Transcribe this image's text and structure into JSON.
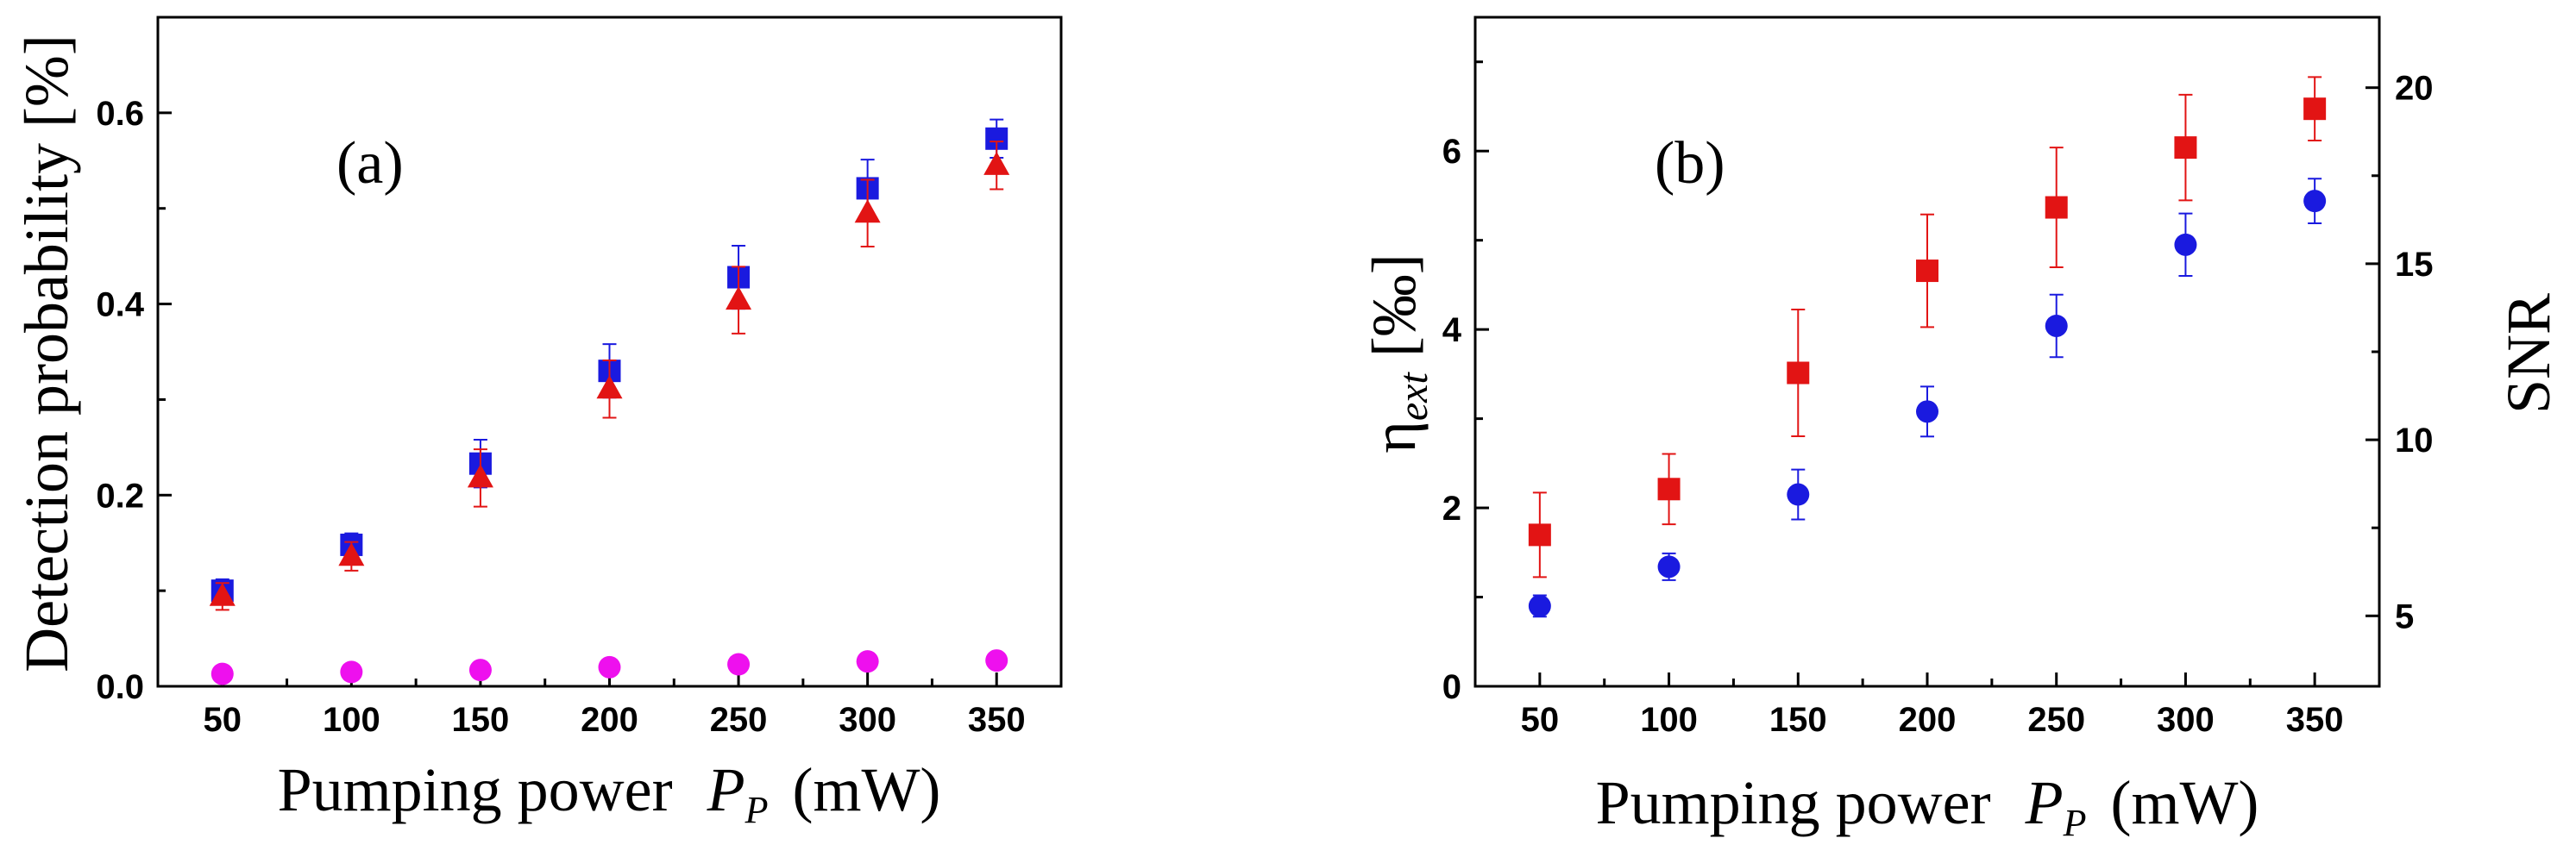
{
  "chart_data": [
    {
      "panel_label": "(a)",
      "type": "scatter",
      "xlabel": {
        "main": "Pumping power",
        "symbol": "P",
        "sub": "P",
        "unit": "(mW)"
      },
      "ylabel": "Detection probability [%]",
      "xlim": [
        25,
        375
      ],
      "ylim": [
        0,
        0.7
      ],
      "x": [
        50,
        100,
        150,
        200,
        250,
        300,
        350
      ],
      "xticks": [
        50,
        100,
        150,
        200,
        250,
        300,
        350
      ],
      "xtick_labels": [
        "50",
        "100",
        "150",
        "200",
        "250",
        "300",
        "350"
      ],
      "yticks": [
        0.0,
        0.2,
        0.4,
        0.6
      ],
      "ytick_labels": [
        "0.0",
        "0.2",
        "0.4",
        "0.6"
      ],
      "series": [
        {
          "name": "blue squares",
          "marker": "square",
          "color": "#1a1adf",
          "axis": "left",
          "values": [
            0.1,
            0.148,
            0.233,
            0.33,
            0.428,
            0.521,
            0.573
          ],
          "errors": [
            0.012,
            0.012,
            0.025,
            0.028,
            0.033,
            0.03,
            0.02
          ]
        },
        {
          "name": "red triangles",
          "marker": "triangle",
          "color": "#e21414",
          "axis": "left",
          "values": [
            0.094,
            0.136,
            0.218,
            0.311,
            0.404,
            0.495,
            0.545
          ],
          "errors": [
            0.014,
            0.015,
            0.03,
            0.03,
            0.035,
            0.035,
            0.025
          ]
        },
        {
          "name": "magenta circles",
          "marker": "circle",
          "color": "#ee10ee",
          "axis": "left",
          "values": [
            0.013,
            0.015,
            0.017,
            0.02,
            0.023,
            0.026,
            0.027
          ],
          "errors": [
            0,
            0,
            0,
            0,
            0,
            0,
            0
          ]
        }
      ]
    },
    {
      "panel_label": "(b)",
      "type": "scatter",
      "xlabel": {
        "main": "Pumping power",
        "symbol": "P",
        "sub": "P",
        "unit": "(mW)"
      },
      "ylabel": {
        "symbol": "η",
        "sub": "ext",
        "unit": "[‰]"
      },
      "ylabel_right": "SNR",
      "xlim": [
        25,
        375
      ],
      "ylim": [
        0,
        7.5
      ],
      "ylim_right": [
        3,
        22
      ],
      "x": [
        50,
        100,
        150,
        200,
        250,
        300,
        350
      ],
      "xticks": [
        50,
        100,
        150,
        200,
        250,
        300,
        350
      ],
      "xtick_labels": [
        "50",
        "100",
        "150",
        "200",
        "250",
        "300",
        "350"
      ],
      "yticks": [
        0,
        2,
        4,
        6
      ],
      "ytick_labels": [
        "0",
        "2",
        "4",
        "6"
      ],
      "yticks_right": [
        5,
        10,
        15,
        20
      ],
      "ytick_labels_right": [
        "5",
        "10",
        "15",
        "20"
      ],
      "series": [
        {
          "name": "η_ext (blue circles)",
          "marker": "circle",
          "color": "#1a1adf",
          "axis": "left",
          "values": [
            0.9,
            1.34,
            2.15,
            3.08,
            4.04,
            4.95,
            5.44
          ],
          "errors": [
            0.12,
            0.15,
            0.28,
            0.28,
            0.35,
            0.35,
            0.25
          ]
        },
        {
          "name": "SNR (red squares)",
          "marker": "square",
          "color": "#e21414",
          "axis": "right",
          "values": [
            7.3,
            8.6,
            11.9,
            14.8,
            16.6,
            18.3,
            19.4
          ],
          "errors": [
            1.2,
            1.0,
            1.8,
            1.6,
            1.7,
            1.5,
            0.9
          ]
        }
      ]
    }
  ]
}
